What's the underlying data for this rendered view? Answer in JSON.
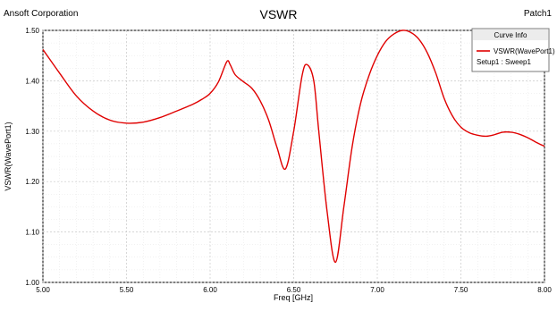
{
  "header": {
    "company": "Ansoft Corporation",
    "title": "VSWR",
    "design": "Patch1"
  },
  "legend": {
    "title": "Curve Info",
    "series_label": "VSWR(WavePort1)",
    "setup_label": "Setup1 : Sweep1"
  },
  "colors": {
    "series": "#e00000",
    "grid": "#c8c8c8"
  },
  "chart_data": {
    "type": "line",
    "title": "VSWR",
    "xlabel": "Freq [GHz]",
    "ylabel": "VSWR(WavePort1)",
    "xlim": [
      5.0,
      8.0
    ],
    "ylim": [
      1.0,
      1.5
    ],
    "x_ticks": [
      "5.00",
      "5.50",
      "6.00",
      "6.50",
      "7.00",
      "7.50",
      "8.00"
    ],
    "y_ticks": [
      "1.00",
      "1.10",
      "1.20",
      "1.30",
      "1.40",
      "1.50"
    ],
    "grid": true,
    "legend_position": "top-right",
    "series": [
      {
        "name": "VSWR(WavePort1)",
        "x": [
          5.0,
          5.1,
          5.2,
          5.3,
          5.4,
          5.5,
          5.6,
          5.7,
          5.8,
          5.9,
          5.95,
          6.0,
          6.05,
          6.1,
          6.12,
          6.15,
          6.2,
          6.25,
          6.3,
          6.35,
          6.4,
          6.45,
          6.5,
          6.55,
          6.58,
          6.62,
          6.65,
          6.7,
          6.75,
          6.8,
          6.85,
          6.9,
          6.95,
          7.0,
          7.05,
          7.1,
          7.15,
          7.2,
          7.25,
          7.3,
          7.35,
          7.4,
          7.45,
          7.5,
          7.55,
          7.6,
          7.65,
          7.7,
          7.75,
          7.8,
          7.85,
          7.9,
          7.95,
          8.0
        ],
        "values": [
          1.462,
          1.415,
          1.37,
          1.34,
          1.322,
          1.316,
          1.318,
          1.327,
          1.34,
          1.354,
          1.363,
          1.375,
          1.398,
          1.438,
          1.432,
          1.412,
          1.398,
          1.385,
          1.36,
          1.322,
          1.268,
          1.225,
          1.3,
          1.41,
          1.432,
          1.4,
          1.3,
          1.14,
          1.04,
          1.15,
          1.27,
          1.355,
          1.41,
          1.45,
          1.478,
          1.493,
          1.5,
          1.496,
          1.482,
          1.455,
          1.415,
          1.365,
          1.33,
          1.308,
          1.297,
          1.292,
          1.29,
          1.293,
          1.298,
          1.298,
          1.294,
          1.287,
          1.278,
          1.27
        ]
      }
    ]
  }
}
